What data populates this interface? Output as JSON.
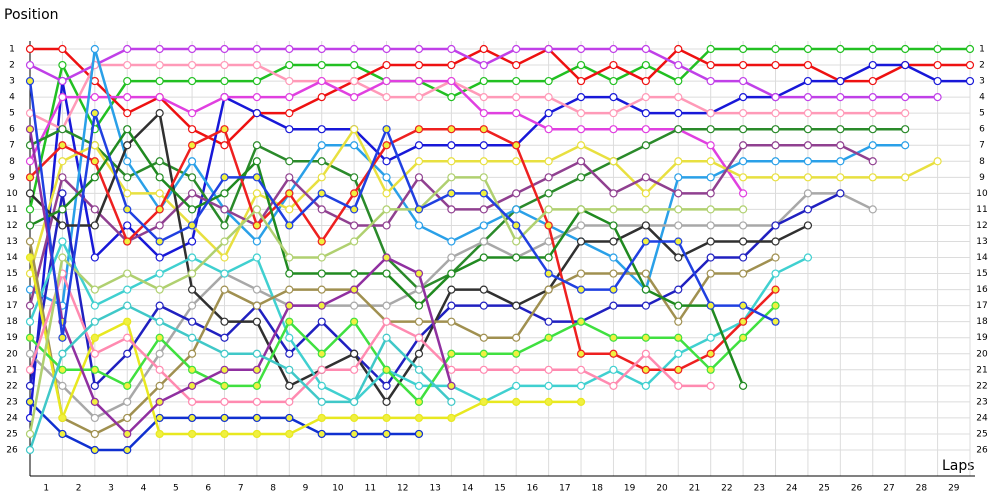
{
  "chart_data": {
    "type": "line",
    "y_title": "Position",
    "x_title": "Laps",
    "x": [
      0,
      1,
      2,
      3,
      4,
      5,
      6,
      7,
      8,
      9,
      10,
      11,
      12,
      13,
      14,
      15,
      16,
      17,
      18,
      19,
      20,
      21,
      22,
      23,
      24,
      25,
      26,
      27,
      28,
      29
    ],
    "xlim": [
      0,
      29
    ],
    "xticks": [
      1,
      2,
      3,
      4,
      5,
      6,
      7,
      8,
      9,
      10,
      11,
      12,
      13,
      14,
      15,
      16,
      17,
      18,
      19,
      20,
      21,
      22,
      23,
      24,
      25,
      26,
      27,
      28,
      29
    ],
    "ylim": [
      26,
      1
    ],
    "yticks": [
      1,
      2,
      3,
      4,
      5,
      6,
      7,
      8,
      9,
      10,
      11,
      12,
      13,
      14,
      15,
      16,
      17,
      18,
      19,
      20,
      21,
      22,
      23,
      24,
      25,
      26
    ],
    "grid": true,
    "series": [
      {
        "color": "#22c022",
        "marker_fill": "#ffffff",
        "values": [
          11,
          2,
          6,
          3,
          3,
          3,
          3,
          3,
          2,
          2,
          2,
          3,
          3,
          4,
          3,
          3,
          3,
          2,
          3,
          2,
          3,
          1,
          1,
          1,
          1,
          1,
          1,
          1,
          1,
          1
        ]
      },
      {
        "color": "#ee1111",
        "marker_fill": "#ffffff",
        "values": [
          1,
          1,
          3,
          5,
          4,
          6,
          7,
          5,
          5,
          4,
          3,
          2,
          2,
          2,
          1,
          2,
          1,
          3,
          2,
          3,
          1,
          2,
          2,
          2,
          2,
          3,
          3,
          2,
          2,
          2
        ]
      },
      {
        "color": "#1818d8",
        "marker_fill": "#ffffff",
        "values": [
          24,
          3,
          14,
          12,
          14,
          13,
          4,
          5,
          6,
          6,
          6,
          8,
          7,
          7,
          7,
          7,
          5,
          4,
          4,
          5,
          5,
          5,
          4,
          4,
          3,
          3,
          2,
          2,
          3,
          3
        ]
      },
      {
        "color": "#c040e8",
        "marker_fill": "#ffffff",
        "values": [
          2,
          3,
          2,
          1,
          1,
          1,
          1,
          1,
          1,
          1,
          1,
          1,
          1,
          1,
          2,
          1,
          1,
          1,
          1,
          1,
          2,
          3,
          3,
          4,
          4,
          4,
          4,
          4,
          4,
          null
        ]
      },
      {
        "color": "#ff9ab8",
        "marker_fill": "#ffffff",
        "values": [
          5,
          6,
          2,
          2,
          2,
          2,
          2,
          2,
          3,
          3,
          3,
          4,
          4,
          3,
          4,
          4,
          4,
          5,
          5,
          4,
          4,
          5,
          5,
          5,
          5,
          5,
          5,
          5,
          null,
          null
        ]
      },
      {
        "color": "#e040e0",
        "marker_fill": "#ffffff",
        "values": [
          8,
          4,
          4,
          4,
          4,
          5,
          4,
          4,
          4,
          3,
          4,
          3,
          3,
          3,
          5,
          5,
          6,
          6,
          6,
          6,
          6,
          7,
          10,
          null,
          null,
          null,
          null,
          null,
          null,
          null
        ]
      },
      {
        "color": "#2a8a2a",
        "marker_fill": "#ffffff",
        "values": [
          7,
          6,
          7,
          9,
          8,
          9,
          12,
          7,
          8,
          8,
          9,
          14,
          16,
          15,
          13,
          11,
          10,
          9,
          8,
          7,
          6,
          6,
          6,
          6,
          6,
          6,
          6,
          6,
          null,
          null
        ]
      },
      {
        "color": "#2aa0e8",
        "marker_fill": "#ffffff",
        "values": [
          16,
          17,
          1,
          8,
          11,
          8,
          11,
          13,
          10,
          7,
          7,
          9,
          12,
          13,
          12,
          11,
          12,
          13,
          14,
          16,
          9,
          9,
          8,
          8,
          8,
          8,
          7,
          7,
          null,
          null
        ]
      },
      {
        "color": "#e8e040",
        "marker_fill": "#ffffff",
        "values": [
          15,
          8,
          7,
          10,
          10,
          12,
          14,
          10,
          11,
          9,
          6,
          10,
          8,
          8,
          8,
          8,
          8,
          7,
          8,
          10,
          8,
          8,
          9,
          9,
          9,
          9,
          9,
          9,
          8,
          null
        ]
      },
      {
        "color": "#904090",
        "marker_fill": "#ffffff",
        "values": [
          17,
          9,
          11,
          13,
          12,
          10,
          11,
          12,
          9,
          11,
          12,
          12,
          9,
          11,
          11,
          10,
          9,
          8,
          10,
          9,
          10,
          10,
          7,
          7,
          7,
          7,
          8,
          null,
          null,
          null
        ]
      },
      {
        "color": "#a8a8a8",
        "marker_fill": "#ffffff",
        "values": [
          20,
          22,
          24,
          23,
          20,
          17,
          15,
          16,
          17,
          17,
          17,
          17,
          16,
          14,
          13,
          14,
          13,
          12,
          12,
          12,
          12,
          12,
          12,
          12,
          10,
          10,
          11,
          null,
          null,
          null
        ]
      },
      {
        "color": "#2020c0",
        "marker_fill": "#ffffff",
        "values": [
          22,
          10,
          22,
          20,
          17,
          18,
          19,
          17,
          20,
          18,
          20,
          22,
          19,
          17,
          17,
          17,
          18,
          18,
          17,
          17,
          16,
          14,
          14,
          12,
          11,
          10,
          null,
          null,
          null,
          null
        ]
      },
      {
        "color": "#303030",
        "marker_fill": "#ffffff",
        "values": [
          10,
          12,
          12,
          7,
          5,
          16,
          18,
          18,
          22,
          21,
          20,
          23,
          20,
          16,
          16,
          17,
          16,
          13,
          13,
          12,
          14,
          13,
          13,
          13,
          12,
          null,
          null,
          null,
          null,
          null
        ]
      },
      {
        "color": "#40d0d0",
        "marker_fill": "#ffffff",
        "values": [
          18,
          13,
          17,
          16,
          15,
          14,
          15,
          14,
          19,
          22,
          23,
          21,
          22,
          22,
          23,
          22,
          22,
          22,
          21,
          22,
          20,
          19,
          18,
          15,
          14,
          null,
          null,
          null,
          null,
          null
        ]
      },
      {
        "color": "#a09050",
        "marker_fill": "#ffffff",
        "values": [
          13,
          24,
          25,
          24,
          22,
          20,
          16,
          17,
          16,
          16,
          16,
          18,
          18,
          18,
          19,
          19,
          16,
          15,
          15,
          15,
          18,
          15,
          15,
          14,
          null,
          null,
          null,
          null,
          null,
          null
        ]
      },
      {
        "color": "#1030d0",
        "marker_fill": "#f0f040",
        "values": [
          23,
          25,
          26,
          26,
          24,
          24,
          24,
          24,
          24,
          25,
          25,
          25,
          25,
          null,
          null,
          null,
          null,
          null,
          null,
          null,
          null,
          null,
          null,
          null,
          null,
          null,
          null,
          null,
          null,
          null
        ]
      },
      {
        "color": "#e8e820",
        "marker_fill": "#f0f040",
        "values": [
          14,
          24,
          19,
          18,
          25,
          25,
          25,
          25,
          25,
          24,
          24,
          24,
          24,
          24,
          23,
          23,
          23,
          23,
          null,
          null,
          null,
          null,
          null,
          null,
          null,
          null,
          null,
          null,
          null,
          null
        ]
      },
      {
        "color": "#ee2020",
        "marker_fill": "#f0f040",
        "values": [
          9,
          7,
          8,
          13,
          11,
          7,
          6,
          12,
          10,
          13,
          10,
          7,
          6,
          6,
          6,
          7,
          12,
          20,
          20,
          21,
          21,
          20,
          18,
          16,
          null,
          null,
          null,
          null,
          null,
          null
        ]
      },
      {
        "color": "#40e040",
        "marker_fill": "#f0f040",
        "values": [
          19,
          21,
          21,
          22,
          19,
          21,
          22,
          22,
          18,
          20,
          18,
          21,
          23,
          20,
          20,
          20,
          19,
          18,
          19,
          19,
          19,
          21,
          19,
          17,
          null,
          null,
          null,
          null,
          null,
          null
        ]
      },
      {
        "color": "#208a20",
        "marker_fill": "#ffffff",
        "values": [
          12,
          11,
          9,
          6,
          9,
          11,
          10,
          8,
          15,
          15,
          15,
          15,
          17,
          15,
          14,
          14,
          14,
          11,
          12,
          16,
          17,
          17,
          22,
          null,
          null,
          null,
          null,
          null,
          null,
          null
        ]
      },
      {
        "color": "#ff8ab0",
        "marker_fill": "#ffffff",
        "values": [
          21,
          15,
          20,
          19,
          21,
          23,
          23,
          23,
          23,
          21,
          21,
          18,
          19,
          21,
          21,
          21,
          21,
          21,
          22,
          20,
          22,
          22,
          null,
          null,
          null,
          null,
          null,
          null,
          null,
          null
        ]
      },
      {
        "color": "#b0d070",
        "marker_fill": "#ffffff",
        "values": [
          25,
          14,
          16,
          15,
          16,
          15,
          13,
          11,
          14,
          14,
          13,
          11,
          11,
          9,
          9,
          13,
          11,
          11,
          11,
          11,
          11,
          11,
          11,
          null,
          null,
          null,
          null,
          null,
          null,
          null
        ]
      },
      {
        "color": "#9030a0",
        "marker_fill": "#f0f040",
        "values": [
          6,
          18,
          23,
          25,
          23,
          22,
          21,
          21,
          17,
          17,
          16,
          14,
          15,
          22,
          null,
          null,
          null,
          null,
          null,
          null,
          null,
          null,
          null,
          null,
          null,
          null,
          null,
          null,
          null,
          null
        ]
      },
      {
        "color": "#2040e0",
        "marker_fill": "#f0f040",
        "values": [
          3,
          19,
          5,
          11,
          13,
          12,
          9,
          9,
          12,
          10,
          11,
          6,
          11,
          10,
          10,
          12,
          15,
          16,
          16,
          13,
          13,
          17,
          17,
          18,
          null,
          null,
          null,
          null,
          null,
          null
        ]
      },
      {
        "color": "#40c8c8",
        "marker_fill": "#ffffff",
        "values": [
          26,
          20,
          18,
          17,
          18,
          19,
          20,
          20,
          21,
          23,
          23,
          19,
          21,
          23,
          null,
          null,
          null,
          null,
          null,
          null,
          null,
          null,
          null,
          null,
          null,
          null,
          null,
          null,
          null,
          null
        ]
      }
    ]
  }
}
